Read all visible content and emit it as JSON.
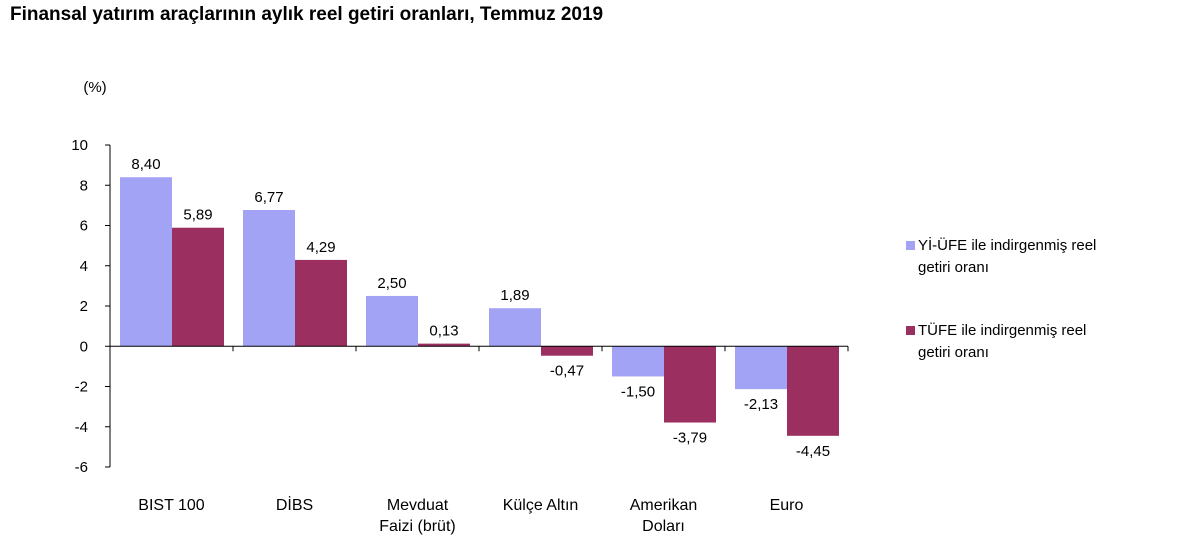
{
  "chart_data": {
    "type": "bar",
    "title": "Finansal yatırım araçlarının aylık reel getiri oranları, Temmuz 2019",
    "ylabel": "(%)",
    "xlabel": "",
    "ylim": [
      -6,
      10
    ],
    "yticks": [
      -6,
      -4,
      -2,
      0,
      2,
      4,
      6,
      8,
      10
    ],
    "categories": [
      [
        "BIST 100"
      ],
      [
        "DİBS"
      ],
      [
        "Mevduat",
        "Faizi (brüt)"
      ],
      [
        "Külçe Altın"
      ],
      [
        "Amerikan",
        "Doları"
      ],
      [
        "Euro"
      ]
    ],
    "series": [
      {
        "name": "Yİ-ÜFE ile indirgenmiş reel getiri oranı",
        "legend_lines": [
          "Yİ-ÜFE ile indirgenmiş reel",
          "getiri oranı"
        ],
        "color": "#a3a3f5",
        "values": [
          8.4,
          6.77,
          2.5,
          1.89,
          -1.5,
          -2.13
        ],
        "labels": [
          "8,40",
          "6,77",
          "2,50",
          "1,89",
          "-1,50",
          "-2,13"
        ]
      },
      {
        "name": "TÜFE ile indirgenmiş reel getiri oranı",
        "legend_lines": [
          "TÜFE ile indirgenmiş reel",
          "getiri oranı"
        ],
        "color": "#9b2f5f",
        "values": [
          5.89,
          4.29,
          0.13,
          -0.47,
          -3.79,
          -4.45
        ],
        "labels": [
          "5,89",
          "4,29",
          "0,13",
          "-0,47",
          "-3,79",
          "-4,45"
        ]
      }
    ],
    "grid": false,
    "legend_position": "right"
  }
}
